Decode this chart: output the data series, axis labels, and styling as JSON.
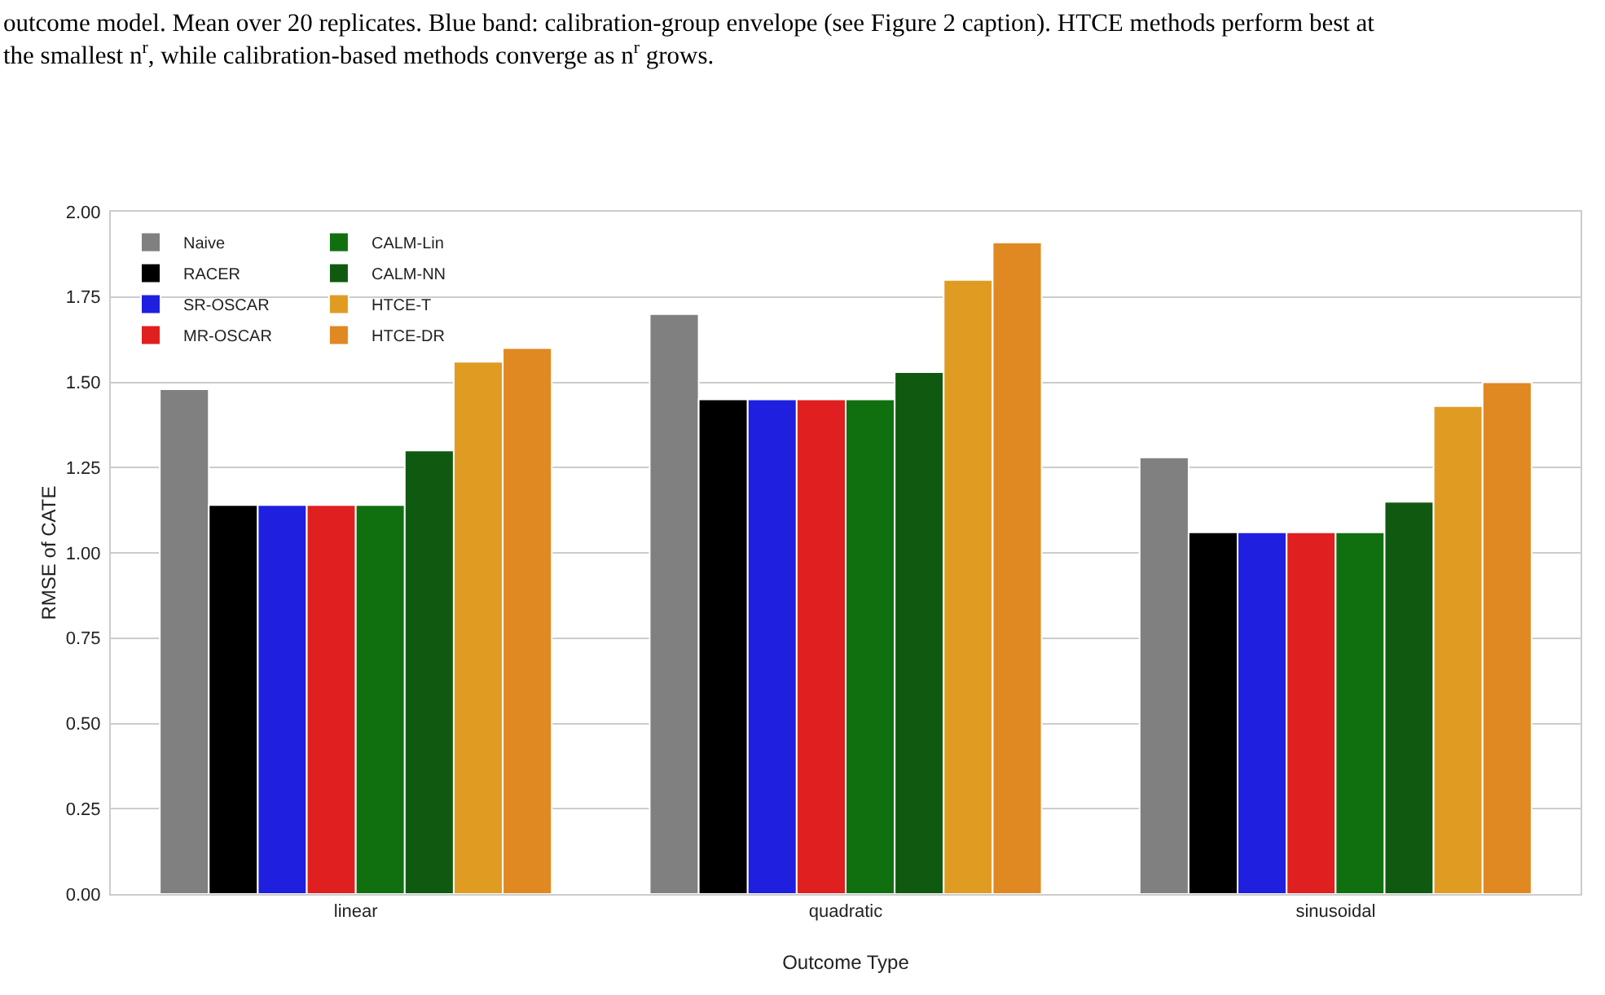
{
  "chart_data": {
    "type": "bar",
    "xlabel": "Outcome Type",
    "ylabel": "RMSE of CATE",
    "annotations": [
      "outcome model. Mean over 20 replicates. Blue band: calibration-group envelope (see Figure 2 caption). HTCE methods perform best at the smallest n$^{r}$, while calibration-based methods converge as n$^{r}$ grows."
    ],
    "categories": [
      "linear",
      "quadratic",
      "sinusoidal"
    ],
    "series": [
      {
        "name": "Naive",
        "color": "#808080",
        "values": [
          1.48,
          1.7,
          1.28
        ]
      },
      {
        "name": "RACER",
        "color": "#000000",
        "values": [
          1.14,
          1.45,
          1.06
        ]
      },
      {
        "name": "SR-OSCAR",
        "color": "#1f1fe0",
        "values": [
          1.14,
          1.45,
          1.06
        ]
      },
      {
        "name": "MR-OSCAR",
        "color": "#e02020",
        "values": [
          1.14,
          1.45,
          1.06
        ]
      },
      {
        "name": "CALM-Lin",
        "color": "#107010",
        "values": [
          1.14,
          1.45,
          1.06
        ]
      },
      {
        "name": "CALM-NN",
        "color": "#0f5a10",
        "values": [
          1.3,
          1.53,
          1.15
        ]
      },
      {
        "name": "HTCE-T",
        "color": "#e09c22",
        "values": [
          1.56,
          1.8,
          1.43
        ]
      },
      {
        "name": "HTCE-DR",
        "color": "#e08822",
        "values": [
          1.6,
          1.91,
          1.5
        ]
      }
    ],
    "ylim": [
      0,
      2
    ],
    "yticks": [
      {
        "value": 0,
        "label": "0.00"
      },
      {
        "value": 0.25,
        "label": "0.25"
      },
      {
        "value": 0.5,
        "label": "0.50"
      },
      {
        "value": 0.75,
        "label": "0.75"
      },
      {
        "value": 1,
        "label": "1.00"
      },
      {
        "value": 1.25,
        "label": "1.25"
      },
      {
        "value": 1.5,
        "label": "1.50"
      },
      {
        "value": 1.75,
        "label": "1.75"
      },
      {
        "value": 2,
        "label": "2.00"
      }
    ],
    "grid": "y",
    "legend": "top left"
  }
}
